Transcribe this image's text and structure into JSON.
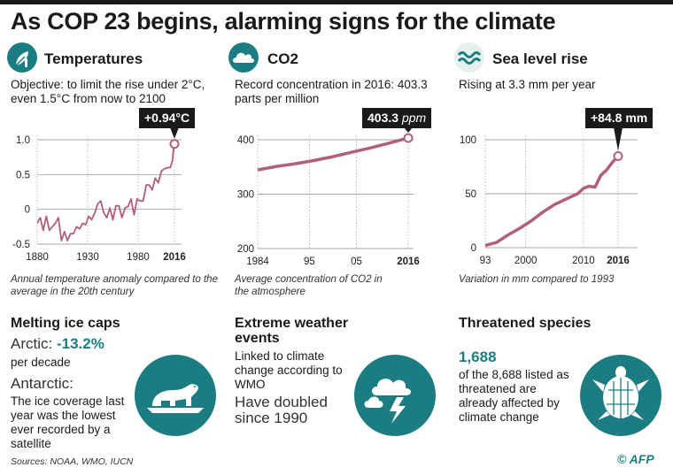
{
  "title": "As COP 23 begins, alarming signs for the climate",
  "panels": {
    "temperatures": {
      "title": "Temperatures",
      "icon": "thermometer-leaf-icon",
      "description": "Objective: to limit the rise under 2°C, even 1.5°C from now to 2100",
      "callout": "+0.94°C",
      "caption": "Annual temperature anomaly compared to the average in the 20th century"
    },
    "co2": {
      "title": "CO2",
      "icon": "cloud-icon",
      "description": "Record concentration in 2016: 403.3 parts per million",
      "callout_value": "403.3",
      "callout_unit": "ppm",
      "caption": "Average concentration of CO2 in the atmosphere"
    },
    "sea": {
      "title": "Sea level rise",
      "icon": "waves-icon",
      "description": "Rising at 3.3 mm per year",
      "callout": "+84.8 mm",
      "caption": "Variation in mm compared to 1993"
    }
  },
  "chart_data": [
    {
      "type": "line",
      "name": "temperature",
      "x": [
        1880,
        1883,
        1886,
        1889,
        1892,
        1895,
        1898,
        1901,
        1904,
        1907,
        1910,
        1913,
        1916,
        1919,
        1922,
        1925,
        1928,
        1931,
        1934,
        1937,
        1940,
        1943,
        1946,
        1949,
        1952,
        1955,
        1958,
        1961,
        1964,
        1967,
        1970,
        1973,
        1976,
        1979,
        1982,
        1985,
        1988,
        1991,
        1994,
        1997,
        2000,
        2003,
        2006,
        2009,
        2012,
        2014,
        2015,
        2016
      ],
      "y": [
        -0.2,
        -0.12,
        -0.3,
        -0.1,
        -0.3,
        -0.25,
        -0.2,
        -0.12,
        -0.45,
        -0.32,
        -0.45,
        -0.35,
        -0.35,
        -0.25,
        -0.28,
        -0.2,
        -0.22,
        -0.1,
        -0.15,
        -0.05,
        0.08,
        0.12,
        -0.05,
        -0.12,
        0.02,
        -0.15,
        0.05,
        0.05,
        -0.12,
        0.02,
        0.04,
        0.15,
        -0.08,
        0.15,
        0.12,
        0.12,
        0.35,
        0.35,
        0.28,
        0.45,
        0.38,
        0.55,
        0.58,
        0.6,
        0.6,
        0.7,
        0.85,
        0.94
      ],
      "xticks": [
        "1880",
        "1930",
        "1980",
        "2016"
      ],
      "yticks": [
        "1.0",
        "0.5",
        "0",
        "-0.5"
      ],
      "ylim": [
        -0.5,
        1.0
      ],
      "xlim": [
        1880,
        2016
      ]
    },
    {
      "type": "line",
      "name": "co2",
      "x": [
        1984,
        1988,
        1992,
        1996,
        2000,
        2004,
        2008,
        2012,
        2016
      ],
      "y": [
        344.5,
        351,
        356,
        362,
        369,
        377,
        385,
        394,
        403.3
      ],
      "xticks": [
        "1984",
        "95",
        "05",
        "2016"
      ],
      "yticks": [
        "400",
        "300",
        "200"
      ],
      "ylim": [
        200,
        400
      ],
      "xlim": [
        1984,
        2016
      ]
    },
    {
      "type": "line",
      "name": "sea-level",
      "x": [
        1993,
        1995,
        1997,
        1999,
        2001,
        2003,
        2005,
        2007,
        2009,
        2010,
        2011,
        2012,
        2013,
        2014,
        2015,
        2016
      ],
      "y": [
        2,
        5,
        12,
        18,
        25,
        33,
        40,
        45,
        50,
        55,
        57,
        56,
        67,
        72,
        79,
        84.8
      ],
      "xticks": [
        "93",
        "2000",
        "2010",
        "2016"
      ],
      "yticks": [
        "100",
        "50",
        "0"
      ],
      "ylim": [
        0,
        100
      ],
      "xlim": [
        1993,
        2016
      ]
    }
  ],
  "melting": {
    "heading": "Melting ice caps",
    "arctic_label": "Arctic:",
    "arctic_value": "-13.2%",
    "arctic_unit": "per decade",
    "antarctic_label": "Antarctic:",
    "antarctic_text": "The ice coverage last year was the lowest ever recorded by a satellite",
    "icon": "polar-bear-icon"
  },
  "weather": {
    "heading": "Extreme weather events",
    "text": "Linked to climate change according to WMO",
    "big": "Have doubled since 1990",
    "icon": "storm-cloud-icon"
  },
  "species": {
    "heading": "Threatened species",
    "value": "1,688",
    "text": "of the 8,688 listed as threatened are already affected by climate change",
    "icon": "turtle-icon"
  },
  "sources": "Sources: NOAA, WMO, IUCN",
  "logo": "© AFP",
  "colors": {
    "accent": "#1b7d82",
    "line": "#b25f7a"
  }
}
